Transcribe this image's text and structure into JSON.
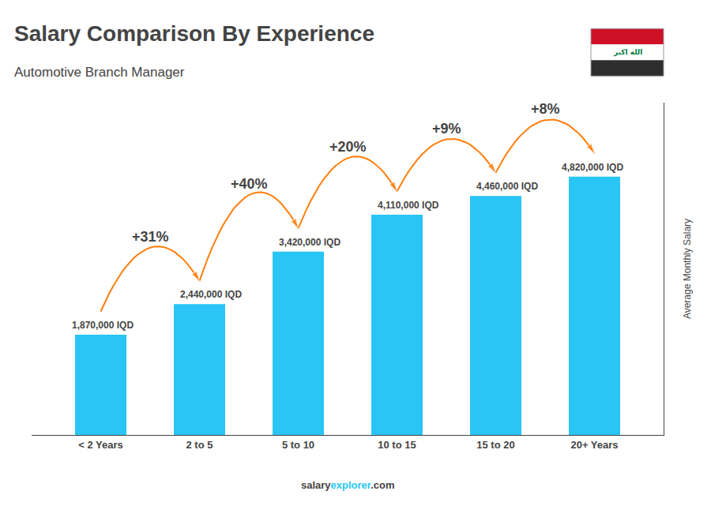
{
  "chart_data": {
    "type": "bar",
    "title": "Salary Comparison By Experience",
    "subtitle": "Automotive Branch Manager",
    "categories": [
      "< 2 Years",
      "2 to 5",
      "5 to 10",
      "10 to 15",
      "15 to 20",
      "20+ Years"
    ],
    "values": [
      1870000,
      2440000,
      3420000,
      4110000,
      4460000,
      4820000
    ],
    "value_labels": [
      "1,870,000 IQD",
      "2,440,000 IQD",
      "3,420,000 IQD",
      "4,110,000 IQD",
      "4,460,000 IQD",
      "4,820,000 IQD"
    ],
    "data_labels": true,
    "color": "#29c5f6",
    "ylabel": "Average Monthly Salary",
    "ylim": [
      0,
      6200000
    ],
    "tick_labels": "x",
    "grid": false,
    "annotations": [
      "+31%",
      "+40%",
      "+20%",
      "+9%",
      "+8%"
    ],
    "watermark": [
      {
        "text": "salary"
      },
      {
        "text": "explorer",
        "color": "#29c5f6"
      },
      {
        "text": ".com"
      }
    ],
    "flag": {
      "text": "الله اكبر",
      "colors": [
        "#CE1126",
        "#FFFFFF",
        "#2E2E2E"
      ],
      "text_color": "#007A3D",
      "border": "#999999"
    }
  }
}
